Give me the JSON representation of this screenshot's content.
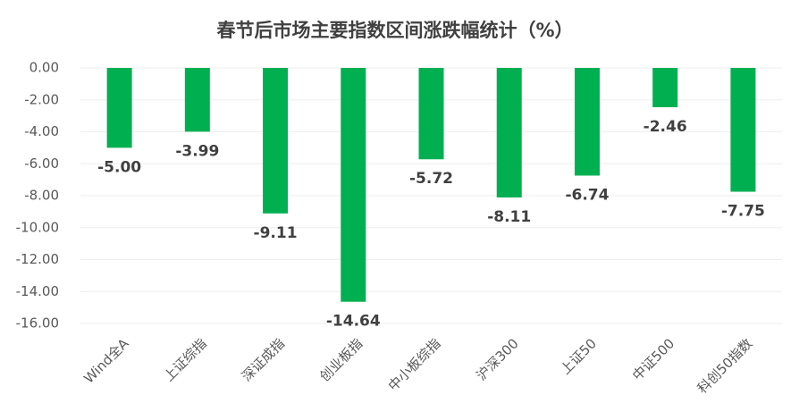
{
  "chart_data": {
    "type": "bar",
    "title": "春节后市场主要指数区间涨跌幅统计（%）",
    "categories": [
      "Wind全A",
      "上证综指",
      "深证成指",
      "创业板指",
      "中小板综指",
      "沪深300",
      "上证50",
      "中证500",
      "科创50指数"
    ],
    "values": [
      -5.0,
      -3.99,
      -9.11,
      -14.64,
      -5.72,
      -8.11,
      -6.74,
      -2.46,
      -7.75
    ],
    "value_labels": [
      "-5.00",
      "-3.99",
      "-9.11",
      "-14.64",
      "-5.72",
      "-8.11",
      "-6.74",
      "-2.46",
      "-7.75"
    ],
    "color": "#00b050",
    "ylim": [
      -16,
      0
    ],
    "yticks": [
      {
        "value": 0,
        "label": "0.00"
      },
      {
        "value": -2,
        "label": "-2.00"
      },
      {
        "value": -4,
        "label": "-4.00"
      },
      {
        "value": -6,
        "label": "-6.00"
      },
      {
        "value": -8,
        "label": "-8.00"
      },
      {
        "value": -10,
        "label": "-10.00"
      },
      {
        "value": -12,
        "label": "-12.00"
      },
      {
        "value": -14,
        "label": "-14.00"
      },
      {
        "value": -16,
        "label": "-16.00"
      }
    ],
    "grid": true
  }
}
